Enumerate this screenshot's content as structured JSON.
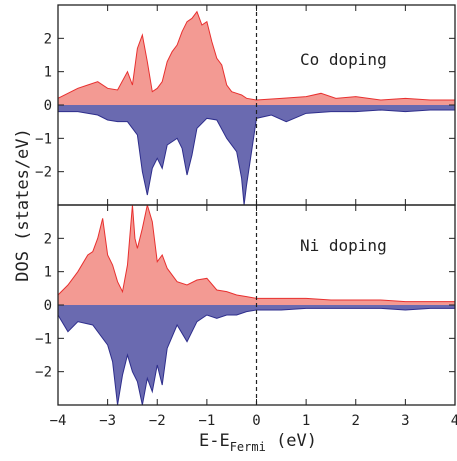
{
  "chart_data": [
    {
      "type": "area",
      "annotation": "Co doping",
      "xlim": [
        -4,
        4
      ],
      "ylim": [
        -3,
        3
      ],
      "x_ticks": [
        "−4",
        "−3",
        "−2",
        "−1",
        "0",
        "1",
        "2",
        "3",
        "4"
      ],
      "y_ticks": [
        "2",
        "1",
        "0",
        "−1",
        "−2"
      ],
      "fermi_level": 0,
      "grid": false,
      "series": [
        {
          "color": "#e8302f",
          "fill": "#f39a93",
          "x": [
            -4.0,
            -3.8,
            -3.6,
            -3.4,
            -3.2,
            -3.0,
            -2.8,
            -2.6,
            -2.5,
            -2.4,
            -2.3,
            -2.2,
            -2.1,
            -2.0,
            -1.9,
            -1.8,
            -1.7,
            -1.6,
            -1.5,
            -1.4,
            -1.3,
            -1.2,
            -1.1,
            -1.0,
            -0.9,
            -0.8,
            -0.7,
            -0.6,
            -0.5,
            -0.4,
            -0.3,
            -0.2,
            0.0,
            0.5,
            1.0,
            1.3,
            1.6,
            2.0,
            2.5,
            3.0,
            3.5,
            4.0
          ],
          "y": [
            0.2,
            0.35,
            0.5,
            0.6,
            0.7,
            0.5,
            0.45,
            1.0,
            0.6,
            1.7,
            2.1,
            1.3,
            0.4,
            0.5,
            0.7,
            1.3,
            1.6,
            1.8,
            2.2,
            2.5,
            2.6,
            2.8,
            2.4,
            2.5,
            1.9,
            1.4,
            1.2,
            0.6,
            0.4,
            0.35,
            0.3,
            0.2,
            0.15,
            0.2,
            0.25,
            0.35,
            0.2,
            0.25,
            0.15,
            0.2,
            0.15,
            0.15
          ]
        },
        {
          "color": "#2e2e8c",
          "fill": "#6a6ab0",
          "x": [
            -4.0,
            -3.6,
            -3.2,
            -3.0,
            -2.8,
            -2.6,
            -2.4,
            -2.3,
            -2.2,
            -2.1,
            -2.0,
            -1.9,
            -1.8,
            -1.6,
            -1.5,
            -1.4,
            -1.3,
            -1.2,
            -1.0,
            -0.8,
            -0.6,
            -0.4,
            -0.3,
            -0.25,
            -0.2,
            -0.1,
            0.0,
            0.3,
            0.6,
            1.0,
            1.5,
            2.0,
            2.5,
            3.0,
            3.5,
            4.0
          ],
          "y": [
            -0.2,
            -0.2,
            -0.3,
            -0.45,
            -0.5,
            -0.5,
            -0.9,
            -2.0,
            -2.7,
            -1.9,
            -1.6,
            -1.9,
            -1.2,
            -1.0,
            -1.3,
            -2.1,
            -1.5,
            -0.7,
            -0.4,
            -0.45,
            -1.0,
            -1.4,
            -2.2,
            -3.0,
            -2.4,
            -1.4,
            -0.4,
            -0.3,
            -0.5,
            -0.25,
            -0.2,
            -0.2,
            -0.15,
            -0.2,
            -0.15,
            -0.15
          ]
        }
      ]
    },
    {
      "type": "area",
      "annotation": "Ni doping",
      "xlim": [
        -4,
        4
      ],
      "ylim": [
        -3,
        3
      ],
      "x_ticks": [
        "−4",
        "−3",
        "−2",
        "−1",
        "0",
        "1",
        "2",
        "3",
        "4"
      ],
      "y_ticks": [
        "2",
        "1",
        "0",
        "−1",
        "−2"
      ],
      "fermi_level": 0,
      "grid": false,
      "series": [
        {
          "color": "#e8302f",
          "fill": "#f39a93",
          "x": [
            -4.0,
            -3.8,
            -3.6,
            -3.4,
            -3.3,
            -3.2,
            -3.1,
            -3.0,
            -2.9,
            -2.8,
            -2.7,
            -2.6,
            -2.5,
            -2.45,
            -2.4,
            -2.3,
            -2.2,
            -2.1,
            -2.0,
            -1.9,
            -1.8,
            -1.6,
            -1.4,
            -1.2,
            -1.0,
            -0.8,
            -0.6,
            -0.4,
            -0.2,
            0.0,
            0.5,
            1.0,
            1.5,
            2.0,
            2.5,
            3.0,
            3.5,
            4.0
          ],
          "y": [
            0.3,
            0.6,
            1.0,
            1.5,
            1.6,
            2.0,
            2.6,
            1.5,
            1.2,
            0.7,
            0.4,
            1.2,
            3.0,
            2.0,
            1.7,
            2.3,
            3.0,
            2.5,
            1.3,
            1.5,
            1.1,
            0.7,
            0.6,
            0.75,
            0.8,
            0.45,
            0.4,
            0.3,
            0.25,
            0.2,
            0.2,
            0.2,
            0.15,
            0.15,
            0.15,
            0.1,
            0.1,
            0.1
          ]
        },
        {
          "color": "#2e2e8c",
          "fill": "#6a6ab0",
          "x": [
            -4.0,
            -3.8,
            -3.6,
            -3.3,
            -3.0,
            -2.9,
            -2.8,
            -2.7,
            -2.6,
            -2.5,
            -2.4,
            -2.3,
            -2.2,
            -2.1,
            -2.0,
            -1.9,
            -1.8,
            -1.6,
            -1.4,
            -1.2,
            -1.0,
            -0.8,
            -0.6,
            -0.4,
            -0.2,
            0.0,
            0.5,
            1.0,
            1.5,
            2.0,
            2.5,
            3.0,
            3.5,
            4.0
          ],
          "y": [
            -0.3,
            -0.8,
            -0.5,
            -0.6,
            -1.2,
            -1.7,
            -3.0,
            -2.1,
            -1.5,
            -2.0,
            -2.3,
            -3.0,
            -2.2,
            -2.6,
            -1.8,
            -2.4,
            -1.3,
            -0.6,
            -1.1,
            -0.5,
            -0.3,
            -0.4,
            -0.3,
            -0.3,
            -0.2,
            -0.15,
            -0.15,
            -0.1,
            -0.1,
            -0.1,
            -0.1,
            -0.15,
            -0.1,
            -0.1
          ]
        }
      ]
    }
  ],
  "axes": {
    "xlabel_main": "E-E",
    "xlabel_sub": "Fermi",
    "xlabel_unit": " (eV)",
    "ylabel": "DOS (states/eV)"
  }
}
